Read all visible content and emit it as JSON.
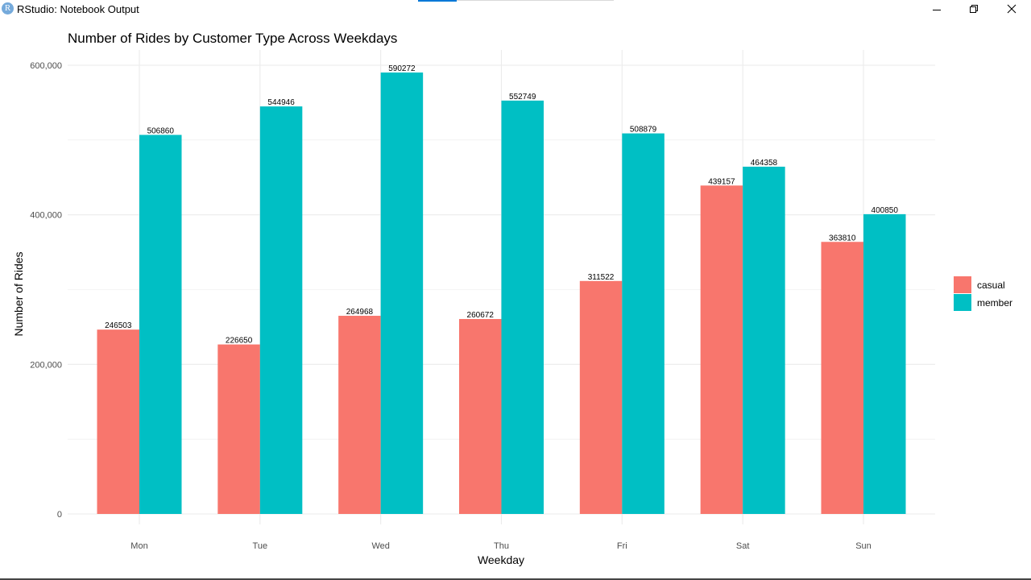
{
  "window": {
    "title": "RStudio: Notebook Output",
    "app_icon": "R",
    "icons": {
      "app": "rstudio-icon",
      "minimize": "minimize-icon",
      "restore": "restore-icon",
      "close": "close-icon"
    }
  },
  "chart_data": {
    "type": "bar",
    "title": "Number of Rides by Customer Type Across Weekdays",
    "xlabel": "Weekday",
    "ylabel": "Number of Rides",
    "categories": [
      "Mon",
      "Tue",
      "Wed",
      "Thu",
      "Fri",
      "Sat",
      "Sun"
    ],
    "series": [
      {
        "name": "casual",
        "color": "#f8766d",
        "values": [
          246503,
          226650,
          264968,
          260672,
          311522,
          439157,
          363810
        ],
        "labels": [
          "246503",
          "226650",
          "264968",
          "260672",
          "311522",
          "439157",
          "363810"
        ]
      },
      {
        "name": "member",
        "color": "#00bfc4",
        "values": [
          506860,
          544946,
          590272,
          552749,
          508879,
          464358,
          400850
        ],
        "labels": [
          "506860",
          "544946",
          "590272",
          "552749",
          "508879",
          "464358",
          "400850"
        ]
      }
    ],
    "ylim": [
      0,
      600000
    ],
    "yticks": [
      0,
      200000,
      400000,
      600000
    ],
    "ytick_labels": [
      "0",
      "200,000",
      "400,000",
      "600,000"
    ],
    "grid": true,
    "legend_position": "right",
    "grid_color": "#ebebeb"
  }
}
